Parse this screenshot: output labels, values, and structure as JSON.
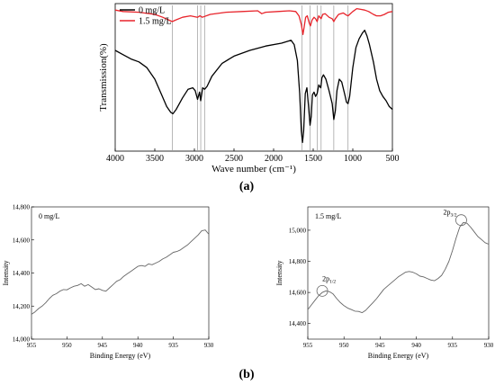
{
  "chart_data": [
    {
      "id": "ftir",
      "type": "line",
      "xlabel": "Wave number (cm⁻¹)",
      "ylabel": "Transmission(%)",
      "xlim": [
        4000,
        500
      ],
      "xticks": [
        4000,
        3500,
        3000,
        2500,
        2000,
        1500,
        1000,
        500
      ],
      "panel_label": "(a)",
      "legend_position": "top-left",
      "reference_lines": [
        3280,
        2960,
        2920,
        2870,
        1640,
        1540,
        1450,
        1400,
        1240,
        1060
      ],
      "series": [
        {
          "name": "0 mg/L",
          "color": "#000000",
          "points": [
            [
              4000,
              70
            ],
            [
              3900,
              67
            ],
            [
              3800,
              64
            ],
            [
              3700,
              62
            ],
            [
              3600,
              58
            ],
            [
              3500,
              50
            ],
            [
              3420,
              40
            ],
            [
              3350,
              31
            ],
            [
              3300,
              27
            ],
            [
              3270,
              26
            ],
            [
              3230,
              29
            ],
            [
              3150,
              37
            ],
            [
              3080,
              43
            ],
            [
              3020,
              44
            ],
            [
              2990,
              42
            ],
            [
              2960,
              36
            ],
            [
              2935,
              41
            ],
            [
              2920,
              35
            ],
            [
              2895,
              44
            ],
            [
              2870,
              43
            ],
            [
              2840,
              45
            ],
            [
              2780,
              52
            ],
            [
              2650,
              61
            ],
            [
              2500,
              66
            ],
            [
              2300,
              70
            ],
            [
              2100,
              73
            ],
            [
              1900,
              75
            ],
            [
              1780,
              77
            ],
            [
              1740,
              74
            ],
            [
              1700,
              63
            ],
            [
              1670,
              40
            ],
            [
              1650,
              14
            ],
            [
              1635,
              6
            ],
            [
              1620,
              14
            ],
            [
              1600,
              40
            ],
            [
              1580,
              44
            ],
            [
              1560,
              32
            ],
            [
              1540,
              18
            ],
            [
              1525,
              24
            ],
            [
              1510,
              39
            ],
            [
              1490,
              41
            ],
            [
              1470,
              38
            ],
            [
              1450,
              40
            ],
            [
              1430,
              46
            ],
            [
              1405,
              44
            ],
            [
              1390,
              51
            ],
            [
              1370,
              53
            ],
            [
              1340,
              50
            ],
            [
              1300,
              42
            ],
            [
              1260,
              33
            ],
            [
              1240,
              22
            ],
            [
              1220,
              28
            ],
            [
              1200,
              42
            ],
            [
              1170,
              50
            ],
            [
              1140,
              48
            ],
            [
              1100,
              39
            ],
            [
              1080,
              34
            ],
            [
              1060,
              33
            ],
            [
              1040,
              38
            ],
            [
              1000,
              58
            ],
            [
              960,
              72
            ],
            [
              920,
              78
            ],
            [
              880,
              82
            ],
            [
              850,
              84
            ],
            [
              820,
              80
            ],
            [
              790,
              74
            ],
            [
              740,
              62
            ],
            [
              700,
              50
            ],
            [
              660,
              42
            ],
            [
              620,
              38
            ],
            [
              580,
              35
            ],
            [
              540,
              31
            ],
            [
              500,
              29
            ]
          ]
        },
        {
          "name": "1.5 mg/L",
          "color": "#e8242b",
          "points": [
            [
              4000,
              98
            ],
            [
              3900,
              97
            ],
            [
              3700,
              96.5
            ],
            [
              3500,
              95
            ],
            [
              3400,
              93
            ],
            [
              3320,
              91
            ],
            [
              3280,
              90
            ],
            [
              3240,
              91
            ],
            [
              3150,
              93
            ],
            [
              3050,
              94
            ],
            [
              2960,
              93
            ],
            [
              2930,
              94
            ],
            [
              2900,
              93
            ],
            [
              2800,
              95
            ],
            [
              2600,
              96.5
            ],
            [
              2400,
              97
            ],
            [
              2200,
              97.5
            ],
            [
              2150,
              95.5
            ],
            [
              2100,
              96.5
            ],
            [
              1950,
              97
            ],
            [
              1800,
              97.5
            ],
            [
              1720,
              97
            ],
            [
              1680,
              94
            ],
            [
              1650,
              88
            ],
            [
              1630,
              81
            ],
            [
              1615,
              86
            ],
            [
              1595,
              93
            ],
            [
              1575,
              94
            ],
            [
              1550,
              89
            ],
            [
              1535,
              87
            ],
            [
              1515,
              91
            ],
            [
              1490,
              93
            ],
            [
              1470,
              92
            ],
            [
              1450,
              90
            ],
            [
              1430,
              94
            ],
            [
              1400,
              92
            ],
            [
              1380,
              95
            ],
            [
              1350,
              95.5
            ],
            [
              1300,
              93
            ],
            [
              1260,
              92
            ],
            [
              1240,
              90
            ],
            [
              1220,
              92
            ],
            [
              1180,
              95
            ],
            [
              1120,
              96
            ],
            [
              1080,
              94.5
            ],
            [
              1060,
              94
            ],
            [
              1040,
              95
            ],
            [
              1000,
              97
            ],
            [
              950,
              99
            ],
            [
              900,
              98.5
            ],
            [
              850,
              98
            ],
            [
              800,
              97
            ],
            [
              740,
              95
            ],
            [
              700,
              94
            ],
            [
              650,
              94
            ],
            [
              600,
              95
            ],
            [
              550,
              96.5
            ],
            [
              500,
              97
            ]
          ]
        }
      ]
    },
    {
      "id": "xps-0",
      "type": "line",
      "annotation": "0 mg/L",
      "xlabel": "Binding Energy (eV)",
      "ylabel": "Intensity",
      "xlim": [
        955,
        930
      ],
      "ylim": [
        14000,
        14800
      ],
      "xticks": [
        955,
        950,
        945,
        940,
        935,
        930
      ],
      "yticks": [
        14000,
        14200,
        14400,
        14600,
        14800
      ],
      "ytick_labels": [
        "14,000",
        "14,200",
        "14,400",
        "14,600",
        "14,800"
      ],
      "series": [
        {
          "color": "#666666",
          "points": [
            [
              955,
              14150
            ],
            [
              954.5,
              14165
            ],
            [
              954,
              14185
            ],
            [
              953.5,
              14200
            ],
            [
              953,
              14220
            ],
            [
              952.5,
              14245
            ],
            [
              952,
              14265
            ],
            [
              951.5,
              14275
            ],
            [
              951,
              14290
            ],
            [
              950.5,
              14300
            ],
            [
              950,
              14298
            ],
            [
              949.5,
              14310
            ],
            [
              949,
              14320
            ],
            [
              948.5,
              14325
            ],
            [
              948,
              14335
            ],
            [
              947.5,
              14320
            ],
            [
              947,
              14330
            ],
            [
              946.5,
              14315
            ],
            [
              946,
              14300
            ],
            [
              945.5,
              14305
            ],
            [
              945,
              14295
            ],
            [
              944.5,
              14290
            ],
            [
              944,
              14310
            ],
            [
              943.5,
              14330
            ],
            [
              943,
              14350
            ],
            [
              942.5,
              14360
            ],
            [
              942,
              14380
            ],
            [
              941.5,
              14395
            ],
            [
              941,
              14410
            ],
            [
              940.5,
              14425
            ],
            [
              940,
              14440
            ],
            [
              939.5,
              14445
            ],
            [
              939,
              14440
            ],
            [
              938.5,
              14455
            ],
            [
              938,
              14450
            ],
            [
              937.5,
              14460
            ],
            [
              937,
              14470
            ],
            [
              936.5,
              14485
            ],
            [
              936,
              14495
            ],
            [
              935.5,
              14510
            ],
            [
              935,
              14525
            ],
            [
              934.5,
              14530
            ],
            [
              934,
              14540
            ],
            [
              933.5,
              14555
            ],
            [
              933,
              14570
            ],
            [
              932.5,
              14590
            ],
            [
              932,
              14610
            ],
            [
              931.5,
              14630
            ],
            [
              931,
              14655
            ],
            [
              930.5,
              14660
            ],
            [
              930.2,
              14645
            ],
            [
              930,
              14635
            ]
          ]
        }
      ]
    },
    {
      "id": "xps-1.5",
      "type": "line",
      "annotation": "1.5 mg/L",
      "xlabel": "Binding Energy (eV)",
      "ylabel": "Intensity",
      "xlim": [
        955,
        930
      ],
      "ylim": [
        14300,
        15150
      ],
      "xticks": [
        955,
        950,
        945,
        940,
        935,
        930
      ],
      "yticks": [
        14400,
        14600,
        14800,
        15000
      ],
      "ytick_labels": [
        "14,400",
        "14,600",
        "14,800",
        "15,000"
      ],
      "peak_labels": [
        {
          "text": "2p",
          "sub": "1/2",
          "x": 953,
          "y": 14610
        },
        {
          "text": "2p",
          "sub": "3/2",
          "x": 933.8,
          "y": 15065
        }
      ],
      "panel_label": "(b)",
      "series": [
        {
          "color": "#666666",
          "points": [
            [
              955,
              14490
            ],
            [
              954.5,
              14520
            ],
            [
              954,
              14550
            ],
            [
              953.5,
              14580
            ],
            [
              953,
              14600
            ],
            [
              952.5,
              14610
            ],
            [
              952,
              14605
            ],
            [
              951.5,
              14590
            ],
            [
              951,
              14560
            ],
            [
              950.5,
              14535
            ],
            [
              950,
              14515
            ],
            [
              949.5,
              14500
            ],
            [
              949,
              14490
            ],
            [
              948.5,
              14480
            ],
            [
              948,
              14478
            ],
            [
              947.5,
              14470
            ],
            [
              947,
              14485
            ],
            [
              946.5,
              14510
            ],
            [
              946,
              14535
            ],
            [
              945.5,
              14560
            ],
            [
              945,
              14590
            ],
            [
              944.5,
              14620
            ],
            [
              944,
              14640
            ],
            [
              943.5,
              14660
            ],
            [
              943,
              14680
            ],
            [
              942.5,
              14700
            ],
            [
              942,
              14715
            ],
            [
              941.5,
              14730
            ],
            [
              941,
              14735
            ],
            [
              940.5,
              14730
            ],
            [
              940,
              14720
            ],
            [
              939.5,
              14705
            ],
            [
              939,
              14700
            ],
            [
              938.5,
              14690
            ],
            [
              938,
              14680
            ],
            [
              937.5,
              14675
            ],
            [
              937,
              14690
            ],
            [
              936.5,
              14710
            ],
            [
              936,
              14750
            ],
            [
              935.5,
              14800
            ],
            [
              935,
              14870
            ],
            [
              934.5,
              14950
            ],
            [
              934,
              15020
            ],
            [
              933.5,
              15050
            ],
            [
              933,
              15045
            ],
            [
              932.5,
              15020
            ],
            [
              932,
              14990
            ],
            [
              931.5,
              14960
            ],
            [
              931,
              14940
            ],
            [
              930.5,
              14920
            ],
            [
              930,
              14910
            ]
          ]
        }
      ]
    }
  ]
}
